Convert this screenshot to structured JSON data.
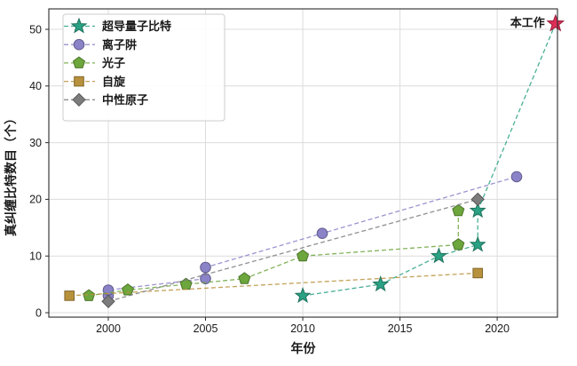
{
  "figure": {
    "background": "#ffffff",
    "grid_color": "#dcdcdc",
    "spine_color": "#2b2b2b",
    "text_color": "#1a1a1a"
  },
  "chart_data": {
    "type": "scatter",
    "title": "",
    "xlabel": "年份",
    "ylabel": "真纠缠比特数目（个）",
    "x_ticks": [
      2000,
      2005,
      2010,
      2015,
      2020
    ],
    "y_ticks": [
      0,
      10,
      20,
      30,
      40,
      50
    ],
    "xlim": [
      1996.94,
      2023.1
    ],
    "ylim": [
      -0.78,
      53.6
    ],
    "grid": true,
    "line_style": "dashed",
    "legend_position": "upper-left",
    "series": [
      {
        "key": "superconducting",
        "name": "超导量子比特",
        "marker": "star",
        "color": "#2aa183",
        "points": [
          [
            2010,
            3
          ],
          [
            2014,
            5
          ],
          [
            2017,
            10
          ],
          [
            2019,
            12
          ],
          [
            2019,
            18
          ]
        ]
      },
      {
        "key": "ion-trap",
        "name": "离子阱",
        "marker": "circle",
        "color": "#8a83c8",
        "points": [
          [
            2000,
            3
          ],
          [
            2000,
            4
          ],
          [
            2005,
            6
          ],
          [
            2005,
            8
          ],
          [
            2011,
            14
          ],
          [
            2021,
            24
          ]
        ]
      },
      {
        "key": "photon",
        "name": "光子",
        "marker": "pentagon",
        "color": "#6ca63c",
        "points": [
          [
            1999,
            3
          ],
          [
            2001,
            4
          ],
          [
            2004,
            5
          ],
          [
            2007,
            6
          ],
          [
            2010,
            10
          ],
          [
            2018,
            12
          ],
          [
            2018,
            18
          ]
        ]
      },
      {
        "key": "spin",
        "name": "自旋",
        "marker": "square",
        "color": "#b8913c",
        "points": [
          [
            1998,
            3
          ],
          [
            2019,
            7
          ]
        ]
      },
      {
        "key": "neutral-atom",
        "name": "中性原子",
        "marker": "diamond",
        "color": "#7c7c7c",
        "points": [
          [
            2000,
            2
          ],
          [
            2019,
            20
          ]
        ]
      }
    ],
    "annotation": {
      "label": "本工作",
      "point": [
        2023,
        51
      ],
      "marker": "star",
      "marker_color": "#dc2e57",
      "text_color": "#e02845",
      "connects_from_series": "superconducting"
    }
  }
}
